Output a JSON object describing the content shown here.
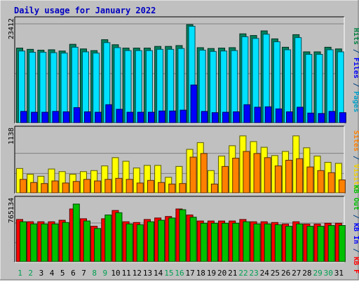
{
  "chart_data": {
    "title": "Daily usage for January 2022",
    "type": "bar",
    "categories": [
      "1",
      "2",
      "3",
      "4",
      "5",
      "6",
      "7",
      "8",
      "9",
      "10",
      "11",
      "12",
      "13",
      "14",
      "15",
      "16",
      "17",
      "18",
      "19",
      "20",
      "21",
      "22",
      "23",
      "24",
      "25",
      "26",
      "27",
      "28",
      "29",
      "30",
      "31"
    ],
    "weekend_days": [
      "1",
      "2",
      "8",
      "9",
      "15",
      "16",
      "22",
      "23",
      "29",
      "30"
    ],
    "panels": [
      {
        "id": "hits",
        "ymax_label": "23412",
        "ymax": 23412,
        "ylabel_parts": [
          {
            "text": "Pages",
            "color": "#00a0c8"
          },
          {
            "text": " / ",
            "color": "#004080"
          },
          {
            "text": "Files",
            "color": "#0000ff"
          },
          {
            "text": " / ",
            "color": "#004080"
          },
          {
            "text": "Hits",
            "color": "#008040"
          }
        ],
        "series": [
          {
            "name": "Hits",
            "color": "#00805c",
            "values": [
              17800,
              17500,
              17300,
              17400,
              17100,
              18700,
              17600,
              17200,
              19800,
              18600,
              17800,
              17800,
              17800,
              18200,
              18200,
              18400,
              23400,
              17900,
              17700,
              17800,
              17900,
              21200,
              20800,
              21900,
              20000,
              18000,
              21000,
              16900,
              16900,
              18000,
              17600
            ]
          },
          {
            "name": "Files",
            "color": "#00e0ff",
            "values": [
              17100,
              16800,
              16800,
              16700,
              16600,
              18000,
              16900,
              16600,
              19100,
              17900,
              17200,
              17200,
              17200,
              17500,
              17500,
              17700,
              23000,
              17300,
              17000,
              17100,
              17200,
              20500,
              20100,
              21100,
              19300,
              17400,
              20300,
              16300,
              16300,
              17400,
              16900
            ]
          },
          {
            "name": "Pages",
            "color": "#0000ff",
            "values": [
              2700,
              2500,
              2500,
              2700,
              2600,
              3600,
              2600,
              2500,
              4300,
              3200,
              2500,
              2500,
              2500,
              2800,
              2800,
              3000,
              9000,
              2700,
              2400,
              2500,
              2600,
              4300,
              3700,
              3800,
              3300,
              2600,
              3700,
              2300,
              2200,
              2700,
              2400
            ]
          }
        ]
      },
      {
        "id": "visits",
        "ymax_label": "1138",
        "ymax": 1138,
        "ylabel_parts": [
          {
            "text": "Visits",
            "color": "#f0d000"
          },
          {
            "text": " / ",
            "color": "#004080"
          },
          {
            "text": "Sites",
            "color": "#ff8000"
          }
        ],
        "series": [
          {
            "name": "Visits",
            "color": "#ffff00",
            "values": [
              470,
              360,
              320,
              460,
              410,
              360,
              410,
              430,
              520,
              680,
              610,
              480,
              530,
              530,
              300,
              510,
              840,
              970,
              430,
              710,
              910,
              1100,
              990,
              880,
              720,
              800,
              1100,
              870,
              710,
              590,
              570
            ]
          },
          {
            "name": "Sites",
            "color": "#ff8000",
            "values": [
              260,
              200,
              180,
              230,
              190,
              220,
              260,
              230,
              260,
              280,
              260,
              190,
              240,
              200,
              170,
              180,
              690,
              760,
              170,
              510,
              670,
              800,
              760,
              680,
              520,
              630,
              660,
              500,
              430,
              390,
              250
            ]
          }
        ]
      },
      {
        "id": "kbytes",
        "ymax_label": "765134",
        "ymax": 765134,
        "ylabel_parts": [
          {
            "text": "KB F",
            "color": "#ff0000"
          },
          {
            "text": " / ",
            "color": "#004080"
          },
          {
            "text": "KB In",
            "color": "#0000ff"
          },
          {
            "text": " / ",
            "color": "#004080"
          },
          {
            "text": "KB Out",
            "color": "#00c000"
          }
        ],
        "series": [
          {
            "name": "KB F",
            "color": "#ff0000",
            "values": [
              560000,
              530000,
              530000,
              530000,
              550000,
              700000,
              570000,
              470000,
              570000,
              680000,
              530000,
              520000,
              560000,
              580000,
              600000,
              700000,
              620000,
              540000,
              540000,
              540000,
              540000,
              560000,
              530000,
              530000,
              520000,
              500000,
              530000,
              500000,
              500000,
              510000,
              510000
            ]
          },
          {
            "name": "KB Out",
            "color": "#00c000",
            "values": [
              530000,
              500000,
              500000,
              500000,
              520000,
              765134,
              540000,
              440000,
              620000,
              650000,
              500000,
              490000,
              530000,
              550000,
              580000,
              690000,
              590000,
              510000,
              510000,
              510000,
              510000,
              530000,
              500000,
              500000,
              490000,
              470000,
              500000,
              470000,
              470000,
              480000,
              480000
            ]
          }
        ]
      }
    ]
  }
}
